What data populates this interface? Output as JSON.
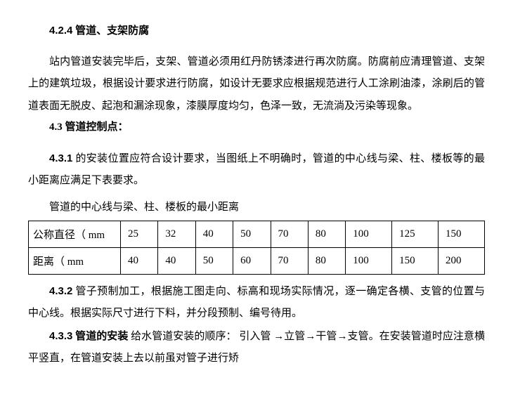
{
  "heading_424_num": "4.2.4",
  "heading_424_txt": " 管道、支架防腐",
  "para_424": "站内管道安装完毕后，支架、管道必须用红丹防锈漆进行再次防腐。防腐前应清理管道、支架上的建筑垃圾，根据设计要求进行防腐，如设计无要求应根据规范进行人工涂刷油漆，涂刷后的管道表面无脱皮、起泡和漏涂现象，漆膜厚度均匀，色泽一致，无流淌及污染等现象。",
  "heading_43": "4.3 管道控制点：",
  "para_431_num": "4.3.1",
  "para_431_txt": " 的安装位置应符合设计要求，当图纸上不明确时，管道的中心线与梁、柱、楼板等的最小距离应满足下表要求。",
  "table_caption": "管道的中心线与梁、柱、楼板的最小距离",
  "table": {
    "row1_header": "公称直径（ mm",
    "row1_vals": [
      "25",
      "32",
      "40",
      "50",
      "70",
      "80",
      "100",
      "125",
      "150"
    ],
    "row2_header": "距离（ mm",
    "row2_vals": [
      "40",
      "40",
      "50",
      "60",
      "70",
      "80",
      "100",
      "150",
      "200"
    ]
  },
  "para_432_num": "4.3.2",
  "para_432_txt": " 管子预制加工，根据施工图走向、标高和现场实际情况，逐一确定各横、支管的位置与中心线。根据实际尺寸进行下料，并分段预制、编号待用。",
  "para_433_num": "4.3.3",
  "para_433_lead": " 管道的安装",
  "para_433_txt": "  给水管道安装的顺序： 引入管 →立管→干管→支管。在安装管道时应注意横平竖直，在管道安装上去以前虽对管子进行矫"
}
